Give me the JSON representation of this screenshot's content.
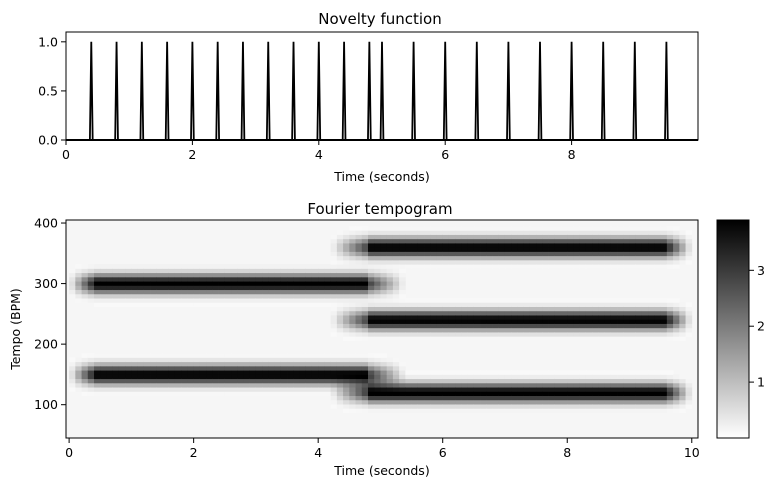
{
  "chart_data": [
    {
      "type": "line",
      "title": "Novelty function",
      "xlabel": "Time (seconds)",
      "ylabel": "",
      "xlim": [
        0,
        10
      ],
      "ylim": [
        0,
        1.1
      ],
      "xticks": [
        "0",
        "2",
        "4",
        "6",
        "8"
      ],
      "yticks": [
        "0.0",
        "0.5",
        "1.0"
      ],
      "impulse_times": [
        0.4,
        0.8,
        1.2,
        1.6,
        2.0,
        2.4,
        2.8,
        3.2,
        3.6,
        4.0,
        4.4,
        4.8,
        5.0,
        5.5,
        6.0,
        6.5,
        7.0,
        7.5,
        8.0,
        8.5,
        9.0,
        9.5
      ],
      "impulse_height": 1.0,
      "color": "#000000"
    },
    {
      "type": "heatmap",
      "title": "Fourier tempogram",
      "xlabel": "Time (seconds)",
      "ylabel": "Tempo (BPM)",
      "xlim": [
        0,
        10
      ],
      "ylim": [
        45,
        405
      ],
      "xticks": [
        "0",
        "2",
        "4",
        "6",
        "8",
        "10"
      ],
      "yticks": [
        "100",
        "200",
        "300",
        "400"
      ],
      "tempo_tracks": [
        {
          "time_range": [
            0,
            4.8
          ],
          "bpm": 150
        },
        {
          "time_range": [
            0,
            4.8
          ],
          "bpm": 300
        },
        {
          "time_range": [
            4.8,
            10
          ],
          "bpm": 120
        },
        {
          "time_range": [
            4.8,
            10
          ],
          "bpm": 240
        },
        {
          "time_range": [
            4.8,
            10
          ],
          "bpm": 360
        }
      ],
      "peak_magnitude": 3.9,
      "colormap": "gray_r",
      "colorbar": {
        "ticks": [
          "1",
          "2",
          "3"
        ],
        "range": [
          0,
          3.9
        ]
      }
    }
  ]
}
